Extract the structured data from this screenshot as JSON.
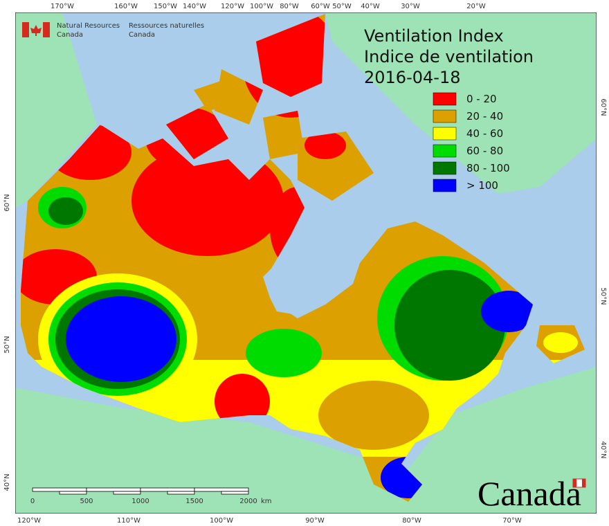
{
  "title": "Ventilation Index",
  "subtitle": "Indice de ventilation",
  "date": "2016-04-18",
  "agency": {
    "en": [
      "Natural Resources",
      "Canada"
    ],
    "fr": [
      "Ressources naturelles",
      "Canada"
    ]
  },
  "legend": [
    {
      "label": "0 - 20",
      "color": "#ff0000"
    },
    {
      "label": "20 - 40",
      "color": "#dca000"
    },
    {
      "label": "40 - 60",
      "color": "#ffff00"
    },
    {
      "label": "60 - 80",
      "color": "#00dc00"
    },
    {
      "label": "80 - 100",
      "color": "#007800"
    },
    {
      "label": "> 100",
      "color": "#0000ff"
    }
  ],
  "top_labels": [
    "170°W",
    "160°W",
    "150°W",
    "140°W",
    "120°W",
    "100°W",
    "80°W",
    "60°W",
    "50°W",
    "40°W",
    "30°W",
    "20°W"
  ],
  "bottom_labels": [
    "120°W",
    "110°W",
    "100°W",
    "90°W",
    "80°W",
    "70°W"
  ],
  "left_labels": [
    "60°N",
    "50°N",
    "40°N"
  ],
  "right_labels": [
    "60°N",
    "50°N",
    "40°N"
  ],
  "scale_bar": {
    "ticks": [
      "0",
      "500",
      "1000",
      "1500",
      "2000"
    ],
    "unit": "km"
  },
  "wordmark": "Canada"
}
